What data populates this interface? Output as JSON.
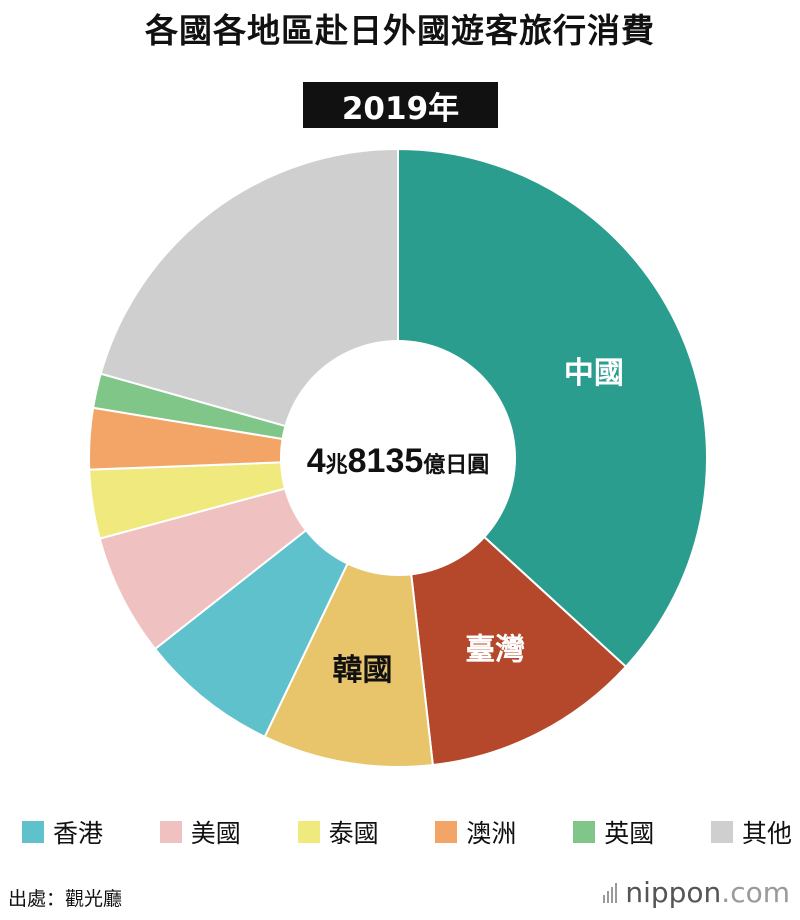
{
  "title": "各國各地區赴日外國遊客旅行消費",
  "year": "2019年",
  "center_label": {
    "num1": "4",
    "unit1": "兆",
    "num2": "8135",
    "unit2": "億日圓"
  },
  "source": "出處：觀光廳",
  "brand": {
    "name": "nippon",
    "suffix": ".com"
  },
  "chart_data": {
    "type": "pie",
    "donut": true,
    "total_text": "4兆8135億日圓",
    "slices": [
      {
        "name": "中國",
        "value": 36.8,
        "color": "#2a9d8f",
        "label_shown": true,
        "label_color": "#ffffff"
      },
      {
        "name": "臺灣",
        "value": 11.4,
        "color": "#b5482a",
        "label_shown": true,
        "label_color": "#ffffff"
      },
      {
        "name": "韓國",
        "value": 8.9,
        "color": "#e8c56b",
        "label_shown": true,
        "label_color": "#111111"
      },
      {
        "name": "香港",
        "value": 7.3,
        "color": "#5fc1cc",
        "label_shown": false
      },
      {
        "name": "美國",
        "value": 6.4,
        "color": "#f0c1c1",
        "label_shown": false
      },
      {
        "name": "泰國",
        "value": 3.6,
        "color": "#f0e97e",
        "label_shown": false
      },
      {
        "name": "澳洲",
        "value": 3.2,
        "color": "#f2a566",
        "label_shown": false
      },
      {
        "name": "英國",
        "value": 1.8,
        "color": "#80c689",
        "label_shown": false
      },
      {
        "name": "其他",
        "value": 20.6,
        "color": "#cfcfcf",
        "label_shown": false
      }
    ],
    "legend": [
      "香港",
      "美國",
      "泰國",
      "澳洲",
      "英國",
      "其他"
    ]
  }
}
